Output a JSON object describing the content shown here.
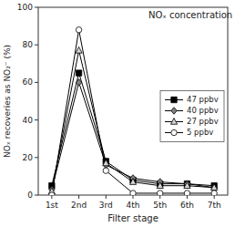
{
  "chart_data": {
    "type": "line",
    "categories": [
      "1st",
      "2nd",
      "3rd",
      "4th",
      "5th",
      "6th",
      "7th"
    ],
    "series": [
      {
        "name": "47 ppbv",
        "color": "black",
        "marker": "square",
        "line_style": "solid",
        "values": [
          5,
          65,
          18,
          8,
          6,
          6,
          5
        ]
      },
      {
        "name": "40 ppbv",
        "color": "gray",
        "marker": "diamond",
        "line_style": "solid",
        "values": [
          3,
          60,
          16,
          9,
          7,
          6,
          4
        ]
      },
      {
        "name": "27 ppbv",
        "color": "lightgray",
        "marker": "triangle",
        "line_style": "solid",
        "values": [
          2,
          77,
          17,
          7,
          5,
          5,
          4
        ]
      },
      {
        "name": "5 ppbv",
        "color": "white",
        "marker": "circle",
        "line_style": "solid",
        "values": [
          0,
          88,
          13,
          1,
          1,
          1,
          1
        ]
      }
    ],
    "xlabel": "Filter stage",
    "ylabel": "NOₓ recoveries as NO₂⁻ (%)",
    "annotations": [
      "NOₓ concentration"
    ],
    "ylim": [
      0,
      100
    ],
    "yticks": [
      0,
      20,
      40,
      60,
      80,
      100
    ],
    "grid": false,
    "legend": "right"
  }
}
